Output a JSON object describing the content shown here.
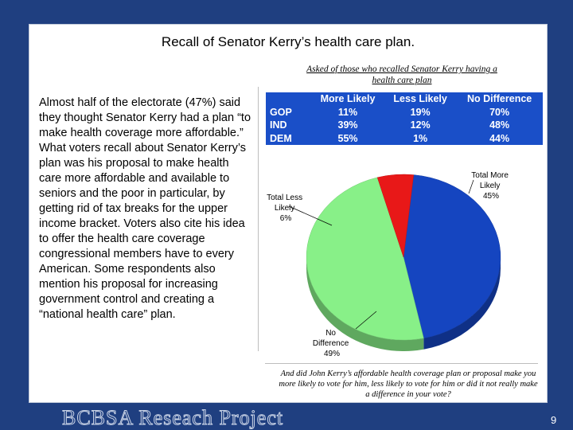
{
  "slide": {
    "title": "Recall of Senator Kerry’s health care plan.",
    "body": "Almost half of the electorate (47%) said they thought Senator Kerry had a plan “to make health coverage more affordable.”  What voters recall about Senator Kerry’s plan was his proposal to make health care more affordable and available to seniors and the poor in particular, by getting rid of tax breaks for the upper income bracket.   Voters also cite his idea to offer the health care coverage congressional members have to every American.  Some respondents also mention his proposal for increasing government control and creating a “national health care” plan.",
    "subtitle": "Asked of those who recalled Senator Kerry having a health care plan",
    "question": "And did John Kerry’s affordable health coverage plan or proposal make you more likely to vote for him, less likely to vote for him or did it not really make a difference in your vote?"
  },
  "table": {
    "headers": [
      "",
      "More Likely",
      "Less Likely",
      "No Difference"
    ],
    "rows": [
      [
        "GOP",
        "11%",
        "19%",
        "70%"
      ],
      [
        "IND",
        "39%",
        "12%",
        "48%"
      ],
      [
        "DEM",
        "55%",
        "1%",
        "44%"
      ]
    ]
  },
  "chart_data": {
    "type": "pie",
    "title": "",
    "slices": [
      {
        "name": "Total More Likely",
        "value": 45,
        "label": "45%",
        "color": "#1545c0"
      },
      {
        "name": "No Difference",
        "value": 49,
        "label": "49%",
        "color": "#88f088"
      },
      {
        "name": "Total Less Likely",
        "value": 6,
        "label": "6%",
        "color": "#e81818"
      }
    ]
  },
  "labels": {
    "more": [
      "Total More",
      "Likely",
      "45%"
    ],
    "less": [
      "Total Less",
      "Likely",
      "6%"
    ],
    "nodiff": [
      "No",
      "Difference",
      "49%"
    ]
  },
  "footer": {
    "project": "BCBSA Reseach Project",
    "page": "9"
  }
}
